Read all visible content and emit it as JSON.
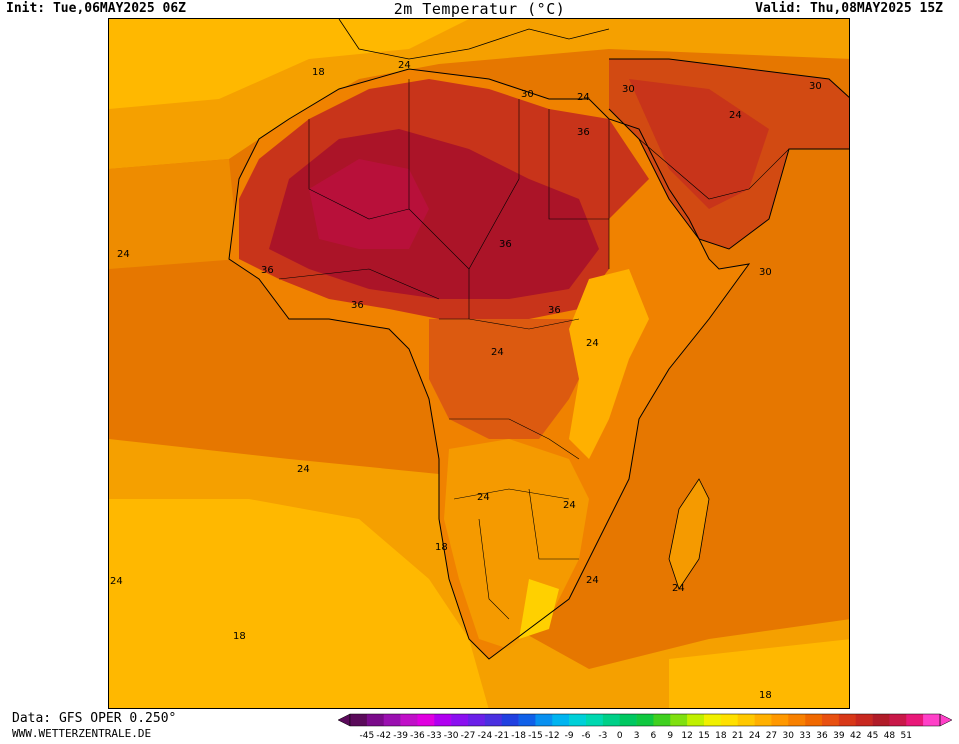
{
  "header": {
    "init": "Init: Tue,06MAY2025 06Z",
    "title": "2m Temperatur (°C)",
    "valid": "Valid: Thu,08MAY2025 15Z"
  },
  "footer": {
    "source": "Data: GFS OPER 0.250°",
    "site": "WWW.WETTERZENTRALE.DE"
  },
  "map": {
    "contour_labels": [
      "18",
      "24",
      "30",
      "36",
      "36",
      "36",
      "36",
      "36",
      "24",
      "30",
      "24",
      "30",
      "30",
      "24",
      "24",
      "24",
      "24",
      "24",
      "18",
      "24",
      "24",
      "24",
      "18",
      "18",
      "24"
    ]
  },
  "legend": {
    "ticks": [
      "-45",
      "-42",
      "-39",
      "-36",
      "-33",
      "-30",
      "-27",
      "-24",
      "-21",
      "-18",
      "-15",
      "-12",
      "-9",
      "-6",
      "-3",
      "0",
      "3",
      "6",
      "9",
      "12",
      "15",
      "18",
      "21",
      "24",
      "27",
      "30",
      "33",
      "36",
      "39",
      "42",
      "45",
      "48",
      "51"
    ],
    "colors": [
      "#5a0a5a",
      "#7a0a8a",
      "#9a10b0",
      "#c010c8",
      "#e000e0",
      "#b000f0",
      "#8a10f0",
      "#6a20e8",
      "#4a30e0",
      "#2040e0",
      "#1060e8",
      "#0890f0",
      "#00b4f0",
      "#00d0d8",
      "#00d8b0",
      "#00d088",
      "#00c860",
      "#10c840",
      "#40d020",
      "#80e010",
      "#c0f000",
      "#f0f000",
      "#ffe000",
      "#ffc800",
      "#ffb000",
      "#ff9800",
      "#f88000",
      "#f06800",
      "#e85010",
      "#d83818",
      "#c82820",
      "#b01c28",
      "#c81848",
      "#e81878",
      "#ff40c8"
    ]
  }
}
